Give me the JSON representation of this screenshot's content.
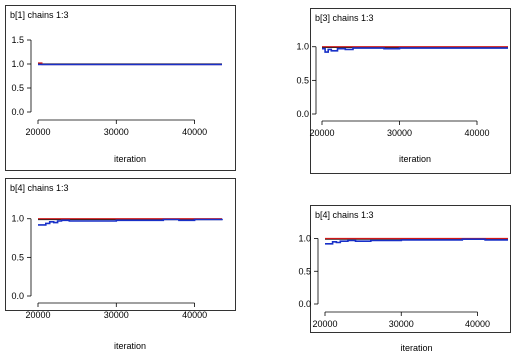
{
  "colors": {
    "chain1": "#d01818",
    "chain2": "#1830c8",
    "chain3": "#202020",
    "frame": "#000000"
  },
  "chart_data": [
    {
      "type": "line",
      "title": "b[1] chains 1:3",
      "xlabel": "iteration",
      "ylabel": "",
      "xlim": [
        20000,
        43500
      ],
      "ylim": [
        0.0,
        1.5
      ],
      "xticks": [
        20000,
        30000,
        40000
      ],
      "yticks": [
        0.0,
        0.5,
        1.0,
        1.5
      ],
      "xtick_labels": [
        "20000",
        "30000",
        "40000"
      ],
      "ytick_labels": [
        "0.0",
        "0.5",
        "1.0",
        "1.5"
      ],
      "series": [
        {
          "x": [
            20000,
            20500,
            43500
          ],
          "values": [
            1.02,
            0.99,
            0.99
          ]
        },
        {
          "x": [
            20000,
            20600,
            43500
          ],
          "values": [
            0.99,
            0.99,
            0.99
          ]
        },
        {
          "x": [
            20000,
            20500,
            43500
          ],
          "values": [
            1.0,
            1.0,
            1.0
          ]
        }
      ]
    },
    {
      "type": "line",
      "title": "b[3] chains 1:3",
      "xlabel": "iteration",
      "ylabel": "",
      "xlim": [
        20000,
        44000
      ],
      "ylim": [
        0.0,
        1.1
      ],
      "xticks": [
        20000,
        30000,
        40000
      ],
      "yticks": [
        0.0,
        0.5,
        1.0
      ],
      "xtick_labels": [
        "20000",
        "30000",
        "40000"
      ],
      "ytick_labels": [
        "0.0",
        "0.5",
        "1.0"
      ],
      "series": [
        {
          "x": [
            20000,
            44000
          ],
          "values": [
            1.0,
            1.0
          ]
        },
        {
          "x": [
            20000,
            20400,
            20800,
            21200,
            22000,
            23000,
            24000,
            26000,
            28000,
            30000,
            35000,
            40000,
            44000
          ],
          "values": [
            0.97,
            0.92,
            0.96,
            0.94,
            0.97,
            0.96,
            0.98,
            0.98,
            0.97,
            0.98,
            0.98,
            0.98,
            0.98
          ]
        },
        {
          "x": [
            20000,
            22000,
            44000
          ],
          "values": [
            0.99,
            0.99,
            0.99
          ]
        }
      ]
    },
    {
      "type": "line",
      "title": "b[4] chains 1:3",
      "xlabel": "iteration",
      "ylabel": "",
      "xlim": [
        20000,
        43500
      ],
      "ylim": [
        0.0,
        1.1
      ],
      "xticks": [
        20000,
        30000,
        40000
      ],
      "yticks": [
        0.0,
        0.5,
        1.0
      ],
      "xtick_labels": [
        "20000",
        "30000",
        "40000"
      ],
      "ytick_labels": [
        "0.0",
        "0.5",
        "1.0"
      ],
      "series": [
        {
          "x": [
            20000,
            43500
          ],
          "values": [
            1.0,
            1.0
          ]
        },
        {
          "x": [
            20000,
            20500,
            21000,
            21500,
            22000,
            22500,
            23000,
            24000,
            25000,
            27000,
            30000,
            33000,
            36000,
            38000,
            40000,
            43500
          ],
          "values": [
            0.92,
            0.92,
            0.94,
            0.96,
            0.95,
            0.97,
            0.98,
            0.97,
            0.97,
            0.97,
            0.98,
            0.98,
            0.99,
            0.98,
            0.99,
            0.98
          ]
        },
        {
          "x": [
            20000,
            22000,
            43500
          ],
          "values": [
            0.99,
            0.99,
            0.99
          ]
        }
      ]
    },
    {
      "type": "line",
      "title": "b[4] chains 1:3",
      "xlabel": "iteration",
      "ylabel": "",
      "xlim": [
        20000,
        44000
      ],
      "ylim": [
        0.0,
        1.1
      ],
      "xticks": [
        20000,
        30000,
        40000
      ],
      "yticks": [
        0.0,
        0.5,
        1.0
      ],
      "xtick_labels": [
        "20000",
        "30000",
        "40000"
      ],
      "ytick_labels": [
        "0.0",
        "0.5",
        "1.0"
      ],
      "series": [
        {
          "x": [
            20000,
            44000
          ],
          "values": [
            1.0,
            1.0
          ]
        },
        {
          "x": [
            20000,
            20500,
            21000,
            21500,
            22000,
            22500,
            23000,
            24000,
            26000,
            28000,
            30000,
            34000,
            38000,
            41000,
            44000
          ],
          "values": [
            0.92,
            0.92,
            0.95,
            0.94,
            0.96,
            0.96,
            0.97,
            0.96,
            0.97,
            0.97,
            0.98,
            0.98,
            0.99,
            0.98,
            0.98
          ]
        },
        {
          "x": [
            20000,
            22000,
            44000
          ],
          "values": [
            0.99,
            0.99,
            0.99
          ]
        }
      ]
    }
  ]
}
